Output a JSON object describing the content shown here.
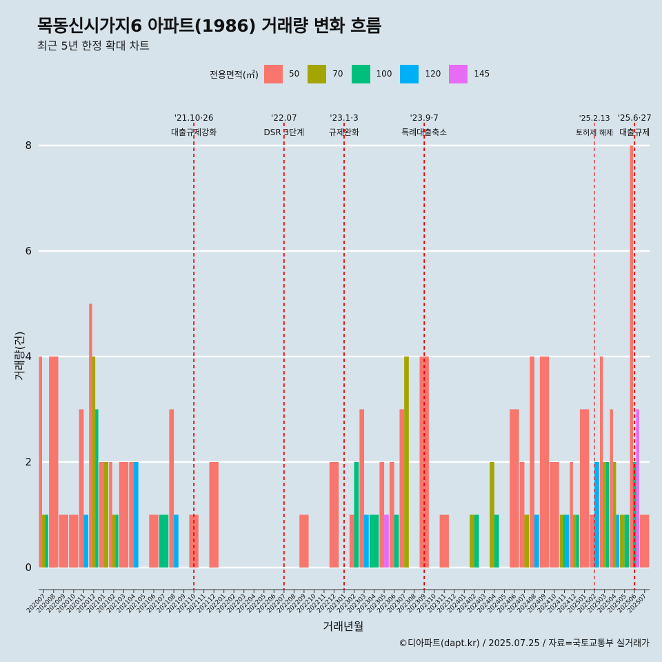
{
  "title": "목동신시가지6 아파트(1986) 거래량 변화 흐름",
  "subtitle": "최근 5년 한정 확대 차트",
  "caption": "©디아파트(dapt.kr) / 2025.07.25 / 자료=국토교통부 실거래가",
  "legend": {
    "title": "전용면적(㎡)",
    "items": [
      {
        "label": "50",
        "color": "#f8766d"
      },
      {
        "label": "70",
        "color": "#a3a500"
      },
      {
        "label": "100",
        "color": "#00bf7d"
      },
      {
        "label": "120",
        "color": "#00b0f6"
      },
      {
        "label": "145",
        "color": "#e76bf3"
      }
    ]
  },
  "chart_data": {
    "type": "bar",
    "xlabel": "거래년월",
    "ylabel": "거래량(건)",
    "ylim": [
      0,
      8
    ],
    "yticks": [
      0,
      2,
      4,
      6,
      8
    ],
    "grid": true,
    "legend_position": "top",
    "categories": [
      "202007",
      "202008",
      "202009",
      "202010",
      "202011",
      "202012",
      "202101",
      "202102",
      "202103",
      "202104",
      "202105",
      "202106",
      "202107",
      "202108",
      "202109",
      "202110",
      "202111",
      "202112",
      "202201",
      "202202",
      "202203",
      "202204",
      "202205",
      "202206",
      "202207",
      "202208",
      "202209",
      "202210",
      "202211",
      "202212",
      "202301",
      "202302",
      "202303",
      "202304",
      "202305",
      "202306",
      "202307",
      "202308",
      "202309",
      "202310",
      "202311",
      "202312",
      "202401",
      "202402",
      "202403",
      "202404",
      "202405",
      "202406",
      "202407",
      "202408",
      "202409",
      "202410",
      "202411",
      "202412",
      "202501",
      "202502",
      "202503",
      "202504",
      "202505",
      "202506",
      "202507"
    ],
    "series": [
      {
        "name": "50",
        "values": [
          4,
          4,
          1,
          1,
          3,
          5,
          2,
          2,
          2,
          2,
          0,
          1,
          0,
          3,
          0,
          1,
          0,
          2,
          0,
          0,
          0,
          0,
          0,
          0,
          0,
          0,
          1,
          0,
          0,
          2,
          0,
          1,
          3,
          0,
          2,
          2,
          3,
          0,
          4,
          0,
          1,
          0,
          0,
          0,
          0,
          0,
          0,
          3,
          2,
          4,
          4,
          2,
          0,
          2,
          3,
          1,
          4,
          3,
          0,
          8,
          1
        ]
      },
      {
        "name": "70",
        "values": [
          1,
          0,
          0,
          0,
          0,
          4,
          2,
          1,
          0,
          0,
          0,
          0,
          0,
          0,
          0,
          0,
          0,
          0,
          0,
          0,
          0,
          0,
          0,
          0,
          0,
          0,
          0,
          0,
          0,
          0,
          0,
          0,
          0,
          0,
          0,
          0,
          4,
          0,
          0,
          0,
          0,
          0,
          0,
          1,
          0,
          2,
          0,
          0,
          1,
          0,
          0,
          0,
          1,
          1,
          0,
          0,
          2,
          2,
          1,
          0,
          0
        ]
      },
      {
        "name": "100",
        "values": [
          1,
          0,
          0,
          0,
          0,
          3,
          0,
          1,
          0,
          0,
          0,
          0,
          1,
          0,
          0,
          0,
          0,
          0,
          0,
          0,
          0,
          0,
          0,
          0,
          0,
          0,
          0,
          0,
          0,
          0,
          0,
          2,
          0,
          1,
          0,
          1,
          0,
          0,
          0,
          0,
          0,
          0,
          0,
          1,
          0,
          1,
          0,
          0,
          0,
          0,
          0,
          0,
          1,
          1,
          0,
          0,
          2,
          0,
          1,
          2,
          0
        ]
      },
      {
        "name": "120",
        "values": [
          0,
          0,
          0,
          0,
          1,
          0,
          0,
          0,
          0,
          2,
          0,
          0,
          0,
          1,
          0,
          0,
          0,
          0,
          0,
          0,
          0,
          0,
          0,
          0,
          0,
          0,
          0,
          0,
          0,
          0,
          0,
          0,
          1,
          0,
          0,
          0,
          0,
          0,
          0,
          0,
          0,
          0,
          0,
          0,
          0,
          0,
          0,
          0,
          0,
          1,
          0,
          0,
          1,
          0,
          0,
          2,
          0,
          1,
          0,
          0,
          0
        ]
      },
      {
        "name": "145",
        "values": [
          0,
          0,
          0,
          0,
          0,
          0,
          0,
          0,
          0,
          0,
          0,
          0,
          0,
          0,
          0,
          0,
          0,
          0,
          0,
          0,
          0,
          0,
          0,
          0,
          0,
          0,
          0,
          0,
          0,
          0,
          0,
          0,
          0,
          0,
          1,
          0,
          0,
          0,
          0,
          0,
          0,
          0,
          0,
          0,
          0,
          0,
          0,
          0,
          0,
          0,
          0,
          0,
          0,
          0,
          0,
          0,
          0,
          0,
          0,
          3,
          0
        ]
      }
    ],
    "annotations": [
      {
        "x": "202110",
        "date": "'21.10·26",
        "text": "대출규제강화"
      },
      {
        "x": "202207",
        "date": "'22.07",
        "text": "DSR 3단계"
      },
      {
        "x": "202301",
        "date": "'23.1·3",
        "text": "규제완화"
      },
      {
        "x": "202309",
        "date": "'23.9·7",
        "text": "특례대출축소"
      },
      {
        "x": "202502",
        "date": "'25.2.13",
        "text": "토허제 해제"
      },
      {
        "x": "202506",
        "date": "'25.6·27",
        "text": "대출규제"
      }
    ]
  }
}
